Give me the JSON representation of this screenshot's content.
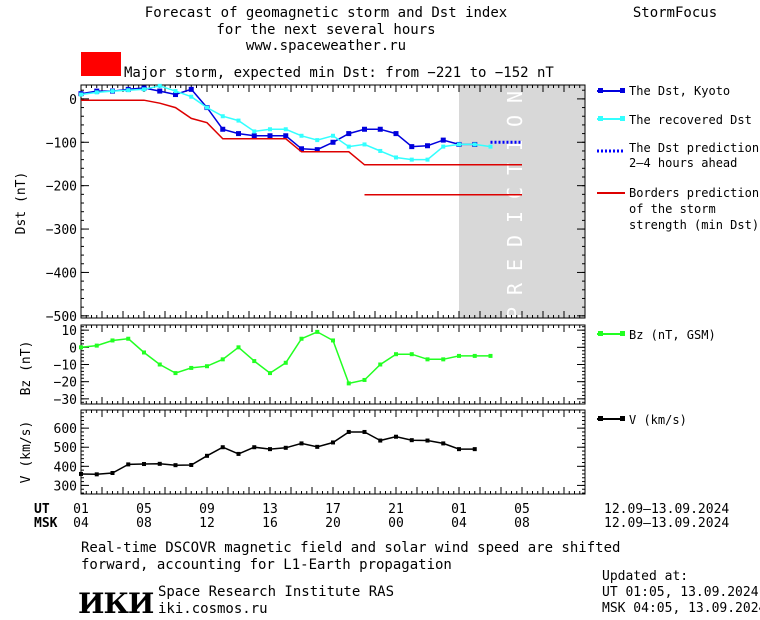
{
  "header": {
    "title_line1": "Forecast of geomagnetic storm and Dst index",
    "title_line2": "for the next several hours",
    "url": "www.spaceweather.ru",
    "brand": "StormFocus"
  },
  "storm_banner": {
    "color": "#ff0000",
    "text": "Major storm, expected min Dst: from −221 to −152 nT"
  },
  "colors": {
    "dst_kyoto": "#0000dd",
    "dst_recovered": "#33ffff",
    "dst_prediction": "#0000ff",
    "borders": "#dd0000",
    "bz": "#22ff22",
    "v": "#000000",
    "prediction_band": "#d8d8d8"
  },
  "chart_data": [
    {
      "type": "line",
      "name": "dst",
      "ylabel": "Dst (nT)",
      "ylim": [
        -505,
        32
      ],
      "yticks": [
        0,
        -100,
        -200,
        -300,
        -400,
        -500
      ],
      "x_hours_range": [
        0,
        96
      ],
      "x_note": "hours since UT 01:00 12.09.2024",
      "prediction_label": "PREDICTION",
      "prediction_from_hour": 72,
      "series": [
        {
          "name": "The Dst, Kyoto",
          "x": [
            0,
            1,
            2,
            3,
            4,
            5,
            6,
            7,
            8,
            9,
            10,
            11,
            12,
            13,
            14,
            15,
            16,
            17,
            18,
            19,
            20,
            21,
            22,
            23,
            24,
            25
          ],
          "y": [
            12,
            18,
            18,
            22,
            25,
            18,
            10,
            22,
            -20,
            -70,
            -80,
            -85,
            -85,
            -85,
            -115,
            -117,
            -100,
            -80,
            -70,
            -70,
            -80,
            -110,
            -108,
            -95,
            -105,
            -105
          ]
        },
        {
          "name": "The recovered Dst",
          "x": [
            0,
            1,
            2,
            3,
            4,
            5,
            6,
            7,
            8,
            9,
            10,
            11,
            12,
            13,
            14,
            15,
            16,
            17,
            18,
            19,
            20,
            21,
            22,
            23,
            24,
            25,
            26
          ],
          "y": [
            10,
            15,
            18,
            20,
            22,
            30,
            18,
            5,
            -20,
            -40,
            -50,
            -75,
            -70,
            -70,
            -85,
            -95,
            -85,
            -110,
            -105,
            -120,
            -135,
            -140,
            -140,
            -110,
            -105,
            -105,
            -110
          ]
        },
        {
          "name": "The Dst prediction 2–4 hours ahead",
          "x": [
            26,
            28
          ],
          "y": [
            -100,
            -100
          ]
        },
        {
          "name": "Borders prediction of the storm strength (min Dst)",
          "x": [
            0,
            4,
            5,
            6,
            7,
            8,
            9,
            10,
            11,
            12,
            13,
            14,
            15,
            16,
            17,
            18,
            28
          ],
          "y": [
            -3,
            -3,
            -10,
            -20,
            -45,
            -55,
            -92,
            -92,
            -92,
            -92,
            -92,
            -122,
            -122,
            -122,
            -122,
            -152,
            -152
          ]
        },
        {
          "name": "Borders prediction of the storm strength (min Dst)",
          "x": [
            18,
            28
          ],
          "y": [
            -221,
            -221
          ]
        }
      ]
    },
    {
      "type": "line",
      "name": "bz",
      "ylabel": "Bz (nT)",
      "ylim": [
        -33,
        13
      ],
      "yticks": [
        10,
        0,
        -10,
        -20,
        -30
      ],
      "series": [
        {
          "name": "Bz (nT, GSM)",
          "x": [
            0,
            1,
            2,
            3,
            4,
            5,
            6,
            7,
            8,
            9,
            10,
            11,
            12,
            13,
            14,
            15,
            16,
            17,
            18,
            19,
            20,
            21,
            22,
            23,
            24,
            25,
            26
          ],
          "y": [
            0,
            1,
            4,
            5,
            -3,
            -10,
            -15,
            -12,
            -11,
            -7,
            0,
            -8,
            -15,
            -9,
            5,
            9,
            4,
            -21,
            -19,
            -10,
            -4,
            -4,
            -7,
            -7,
            -5,
            -5,
            -5
          ]
        }
      ]
    },
    {
      "type": "line",
      "name": "v",
      "ylabel": "V (km/s)",
      "ylim": [
        255,
        695
      ],
      "yticks": [
        600,
        500,
        400,
        300
      ],
      "series": [
        {
          "name": "V (km/s)",
          "x": [
            0,
            1,
            2,
            3,
            4,
            5,
            6,
            7,
            8,
            9,
            10,
            11,
            12,
            13,
            14,
            15,
            16,
            17,
            18,
            19,
            20,
            21,
            22,
            23,
            24,
            25
          ],
          "y": [
            360,
            358,
            365,
            410,
            412,
            413,
            406,
            407,
            455,
            500,
            465,
            500,
            490,
            497,
            520,
            502,
            525,
            580,
            580,
            535,
            555,
            537,
            535,
            520,
            490,
            490
          ]
        }
      ]
    }
  ],
  "x_axis": {
    "ut_label": "UT",
    "msk_label": "MSK",
    "ut_ticks": [
      "01",
      "05",
      "09",
      "13",
      "17",
      "21",
      "01",
      "05"
    ],
    "msk_ticks": [
      "04",
      "08",
      "12",
      "16",
      "20",
      "00",
      "04",
      "08"
    ],
    "date_range_ut": "12.09–13.09.2024",
    "date_range_msk": "12.09–13.09.2024"
  },
  "legend": {
    "dst_kyoto": "The Dst, Kyoto",
    "dst_recovered": "The recovered Dst",
    "dst_prediction_1": "The Dst prediction",
    "dst_prediction_2": "2–4 hours ahead",
    "borders_1": "Borders prediction",
    "borders_2": "of the storm",
    "borders_3": "strength (min Dst)",
    "bz": "Bz (nT, GSM)",
    "v": "V (km/s)"
  },
  "footer": {
    "note_line1": "Real-time DSCOVR magnetic field and solar wind speed are shifted",
    "note_line2": "forward, accounting for L1-Earth propagation",
    "logo_text": "ИКИ",
    "institute": "Space Research Institute RAS",
    "site": "iki.cosmos.ru",
    "updated_label": "Updated at:",
    "updated_ut": "UT   01:05, 13.09.2024",
    "updated_msk": "MSK 04:05, 13.09.2024"
  }
}
